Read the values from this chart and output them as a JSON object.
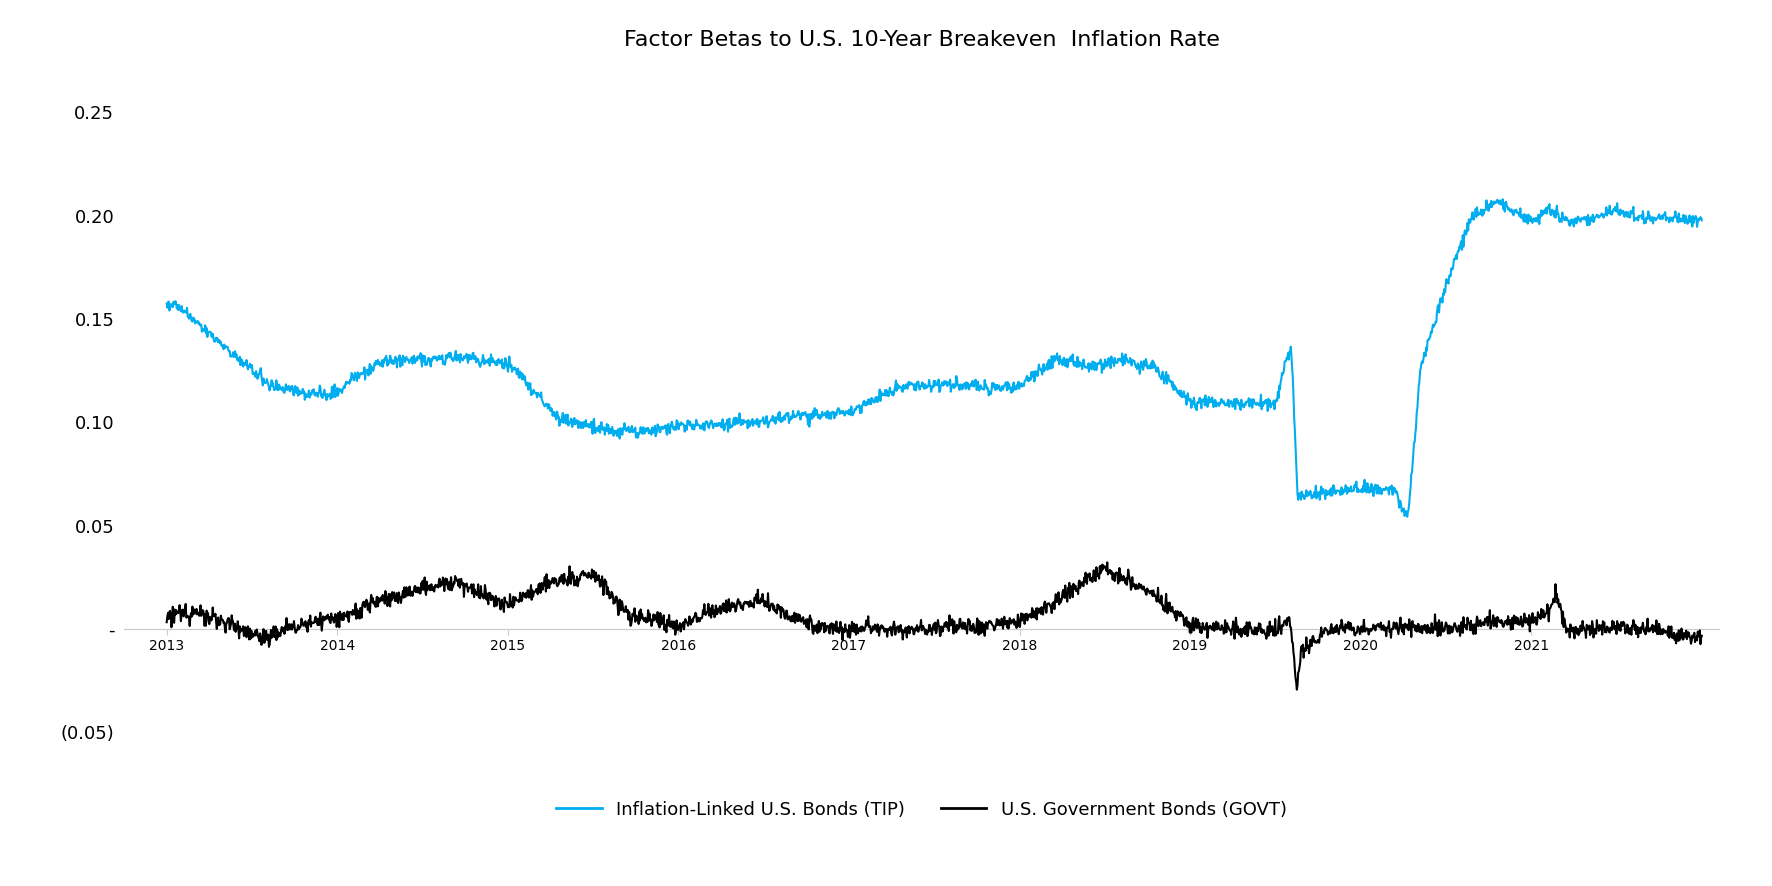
{
  "title": "Factor Betas to U.S. 10-Year Breakeven  Inflation Rate",
  "ylim": [
    -0.06,
    0.27
  ],
  "yticks": [
    -0.05,
    0.0,
    0.05,
    0.1,
    0.15,
    0.2,
    0.25
  ],
  "ytick_labels": [
    "(0.05)",
    "-",
    "0.05",
    "0.10",
    "0.15",
    "0.20",
    "0.25"
  ],
  "xlim_start": 2012.75,
  "xlim_end": 2022.1,
  "xticks": [
    2013,
    2014,
    2015,
    2016,
    2017,
    2018,
    2019,
    2020,
    2021
  ],
  "tip_color": "#00AEEF",
  "govt_color": "#000000",
  "tip_label": "Inflation-Linked U.S. Bonds (TIP)",
  "govt_label": "U.S. Government Bonds (GOVT)",
  "background_color": "#ffffff",
  "title_fontsize": 16,
  "tick_fontsize": 13,
  "legend_fontsize": 13
}
